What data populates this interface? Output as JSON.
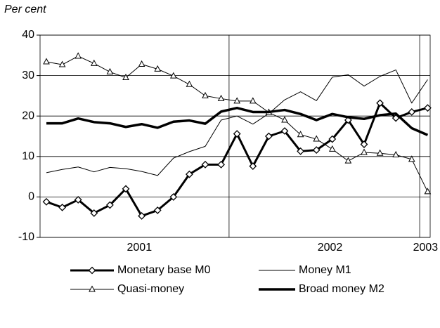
{
  "chart_data": {
    "type": "line",
    "y_axis_label": "Per cent",
    "categories": [
      null,
      null,
      null,
      null,
      null,
      null,
      null,
      null,
      null,
      null,
      null,
      null,
      null,
      null,
      null,
      null,
      null,
      null,
      null,
      null,
      null,
      null,
      null,
      null,
      null
    ],
    "x_groups": [
      {
        "label": "2001",
        "from": 0,
        "to": 11
      },
      {
        "label": "2002",
        "from": 12,
        "to": 23
      },
      {
        "label": "2003",
        "from": 24,
        "to": 24
      }
    ],
    "ylim": [
      -10,
      40
    ],
    "yticks": [
      -10,
      0,
      10,
      20,
      30,
      40
    ],
    "grid": true,
    "legend": "bottom",
    "series": [
      {
        "name": "Monetary base M0",
        "color": "#000000",
        "line_width": 3,
        "marker": "diamond",
        "values": [
          -1.2,
          -2.6,
          -0.7,
          -4,
          -2,
          2,
          -4.7,
          -3.3,
          0,
          5.6,
          8,
          8,
          15.6,
          7.6,
          15,
          16.3,
          11.3,
          11.6,
          14.3,
          19,
          13,
          23.2,
          19.5,
          21,
          22
        ]
      },
      {
        "name": "Money M1",
        "color": "#000000",
        "line_width": 1,
        "marker": "none",
        "values": [
          6,
          6.8,
          7.4,
          6.2,
          7.3,
          7,
          6.3,
          5.3,
          9.6,
          11.2,
          12.5,
          19,
          20,
          18,
          20.6,
          24,
          26,
          23.8,
          29.6,
          30.2,
          27.4,
          29.8,
          31.4,
          23.2,
          29
        ]
      },
      {
        "name": "Quasi-money",
        "color": "#000000",
        "line_width": 1,
        "marker": "triangle",
        "values": [
          33.4,
          32.7,
          34.8,
          33,
          30.9,
          29.5,
          32.8,
          31.6,
          29.9,
          27.8,
          25,
          24.3,
          23.7,
          23.7,
          20.9,
          19,
          15.4,
          14.3,
          11.8,
          8.9,
          11,
          10.8,
          10.4,
          9.3,
          1.3
        ]
      },
      {
        "name": "Broad money M2",
        "color": "#000000",
        "line_width": 3.5,
        "marker": "none",
        "values": [
          18.2,
          18.2,
          19.4,
          18.5,
          18.2,
          17.3,
          18,
          17.1,
          18.6,
          18.9,
          18.1,
          21.1,
          22,
          21,
          21,
          21.5,
          20.5,
          19,
          20.5,
          19.7,
          19.3,
          20.2,
          20.6,
          17,
          15.3
        ]
      }
    ]
  }
}
